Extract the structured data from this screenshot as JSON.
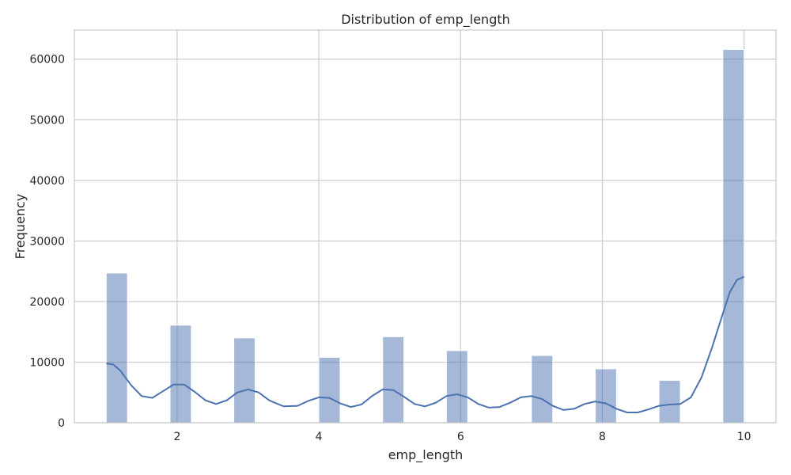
{
  "chart_data": {
    "type": "bar",
    "title": "Distribution of emp_length",
    "xlabel": "emp_length",
    "ylabel": "Frequency",
    "xlim": [
      0.55,
      10.45
    ],
    "ylim": [
      0,
      64800
    ],
    "xticks": [
      2,
      4,
      6,
      8,
      10
    ],
    "yticks": [
      0,
      10000,
      20000,
      30000,
      40000,
      50000,
      60000
    ],
    "grid": true,
    "bar_color": "#4c72b0",
    "bars": [
      {
        "x0": 1.0,
        "x1": 1.3,
        "count": 24700
      },
      {
        "x0": 1.9,
        "x1": 2.2,
        "count": 16100
      },
      {
        "x0": 2.8,
        "x1": 3.1,
        "count": 14000
      },
      {
        "x0": 4.0,
        "x1": 4.3,
        "count": 10800
      },
      {
        "x0": 4.9,
        "x1": 5.2,
        "count": 14200
      },
      {
        "x0": 5.8,
        "x1": 6.1,
        "count": 11900
      },
      {
        "x0": 7.0,
        "x1": 7.3,
        "count": 11100
      },
      {
        "x0": 7.9,
        "x1": 8.2,
        "count": 8900
      },
      {
        "x0": 8.8,
        "x1": 9.1,
        "count": 7000
      },
      {
        "x0": 9.7,
        "x1": 10.0,
        "count": 61600
      }
    ],
    "kde": {
      "color": "#4c72b0",
      "points": [
        [
          1.0,
          9800
        ],
        [
          1.1,
          9600
        ],
        [
          1.2,
          8600
        ],
        [
          1.35,
          6200
        ],
        [
          1.5,
          4400
        ],
        [
          1.65,
          4100
        ],
        [
          1.8,
          5200
        ],
        [
          1.95,
          6300
        ],
        [
          2.1,
          6300
        ],
        [
          2.25,
          5100
        ],
        [
          2.4,
          3700
        ],
        [
          2.55,
          3100
        ],
        [
          2.7,
          3700
        ],
        [
          2.85,
          5000
        ],
        [
          3.0,
          5500
        ],
        [
          3.15,
          5000
        ],
        [
          3.3,
          3700
        ],
        [
          3.5,
          2700
        ],
        [
          3.7,
          2800
        ],
        [
          3.85,
          3600
        ],
        [
          4.0,
          4200
        ],
        [
          4.15,
          4100
        ],
        [
          4.3,
          3200
        ],
        [
          4.45,
          2600
        ],
        [
          4.6,
          3000
        ],
        [
          4.75,
          4400
        ],
        [
          4.9,
          5500
        ],
        [
          5.05,
          5400
        ],
        [
          5.2,
          4300
        ],
        [
          5.35,
          3100
        ],
        [
          5.5,
          2700
        ],
        [
          5.65,
          3300
        ],
        [
          5.8,
          4400
        ],
        [
          5.95,
          4700
        ],
        [
          6.1,
          4200
        ],
        [
          6.25,
          3100
        ],
        [
          6.4,
          2500
        ],
        [
          6.55,
          2600
        ],
        [
          6.7,
          3300
        ],
        [
          6.85,
          4200
        ],
        [
          7.0,
          4400
        ],
        [
          7.15,
          3900
        ],
        [
          7.3,
          2800
        ],
        [
          7.45,
          2100
        ],
        [
          7.6,
          2300
        ],
        [
          7.75,
          3100
        ],
        [
          7.9,
          3500
        ],
        [
          8.05,
          3200
        ],
        [
          8.2,
          2300
        ],
        [
          8.35,
          1700
        ],
        [
          8.5,
          1700
        ],
        [
          8.65,
          2200
        ],
        [
          8.8,
          2800
        ],
        [
          8.95,
          3000
        ],
        [
          9.1,
          3100
        ],
        [
          9.25,
          4200
        ],
        [
          9.4,
          7500
        ],
        [
          9.55,
          12500
        ],
        [
          9.7,
          18000
        ],
        [
          9.8,
          21600
        ],
        [
          9.9,
          23600
        ],
        [
          10.0,
          24100
        ]
      ]
    }
  }
}
